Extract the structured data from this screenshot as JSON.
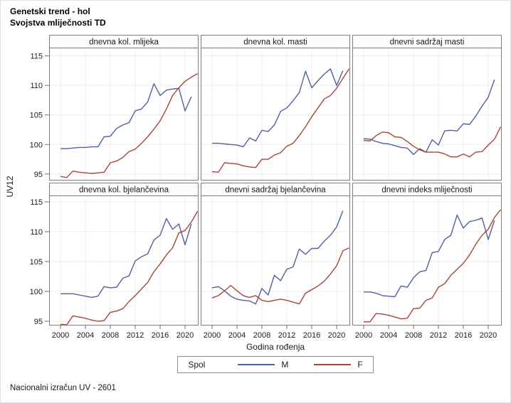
{
  "title_line1": "Genetski trend - hol",
  "title_line2": "Svojstva mliječnosti TD",
  "y_axis_label": "UV12",
  "x_axis_label": "Godina rođenja",
  "footnote": "Nacionalni izračun UV - 2601",
  "legend": {
    "title": "Spol",
    "items": [
      {
        "label": "M",
        "color": "#50619E"
      },
      {
        "label": "F",
        "color": "#A8463A"
      }
    ]
  },
  "chart_data": {
    "type": "line",
    "grid": true,
    "x_ticks": [
      2000,
      2004,
      2008,
      2012,
      2016,
      2020
    ],
    "y_ticks": [
      95,
      100,
      105,
      110,
      115
    ],
    "x_range": [
      1998.2,
      2022.2
    ],
    "y_range": [
      93.9,
      116.4
    ],
    "legend_position": "bottom",
    "panels": [
      {
        "title": "dnevna kol. mlijeka",
        "M": {
          "start_year": 2000,
          "values": [
            99.3,
            99.3,
            99.4,
            99.5,
            99.5,
            99.6,
            99.6,
            101.3,
            101.4,
            102.7,
            103.3,
            103.7,
            105.7,
            106.0,
            107.2,
            110.3,
            108.3,
            109.2,
            109.4,
            109.5,
            105.7,
            108.1
          ]
        },
        "F": {
          "start_year": 2000,
          "values": [
            94.6,
            94.4,
            95.5,
            95.3,
            95.2,
            95.1,
            95.2,
            95.3,
            96.9,
            97.2,
            97.8,
            98.8,
            99.2,
            100.2,
            101.3,
            102.6,
            104.0,
            106.0,
            108.3,
            109.6,
            110.7,
            111.4,
            112.0
          ]
        }
      },
      {
        "title": "dnevna kol. masti",
        "M": {
          "start_year": 2000,
          "values": [
            100.2,
            100.2,
            100.1,
            100.0,
            99.9,
            99.6,
            101.1,
            100.6,
            102.4,
            102.2,
            103.3,
            105.6,
            106.2,
            107.4,
            108.8,
            112.4,
            109.6,
            110.8,
            111.9,
            112.8,
            110.0,
            112.5
          ]
        },
        "F": {
          "start_year": 2000,
          "values": [
            95.4,
            95.3,
            96.9,
            96.8,
            96.7,
            96.4,
            96.2,
            96.1,
            97.5,
            97.5,
            98.2,
            98.6,
            99.7,
            100.2,
            101.5,
            103.0,
            104.7,
            106.2,
            107.7,
            108.3,
            109.5,
            111.2,
            112.8
          ]
        }
      },
      {
        "title": "dnevni sadržaj masti",
        "M": {
          "start_year": 2000,
          "values": [
            101.0,
            100.9,
            100.5,
            100.2,
            100.1,
            99.8,
            99.5,
            99.4,
            98.3,
            99.3,
            98.7,
            100.8,
            99.9,
            102.3,
            102.4,
            102.3,
            103.5,
            103.4,
            104.8,
            106.5,
            108.0,
            111.0
          ]
        },
        "F": {
          "start_year": 2000,
          "values": [
            100.7,
            100.6,
            101.5,
            102.1,
            102.0,
            101.3,
            101.2,
            100.5,
            99.7,
            99.1,
            98.7,
            98.7,
            98.7,
            98.4,
            97.9,
            97.9,
            98.4,
            97.9,
            98.7,
            98.8,
            99.9,
            100.9,
            103.0
          ]
        }
      },
      {
        "title": "dnevna kol. bjelančevina",
        "M": {
          "start_year": 2000,
          "values": [
            99.6,
            99.6,
            99.6,
            99.4,
            99.2,
            99.0,
            99.2,
            100.8,
            100.6,
            100.7,
            102.2,
            102.6,
            105.1,
            105.8,
            106.3,
            108.6,
            109.4,
            112.2,
            110.4,
            111.3,
            107.8,
            111.3
          ]
        },
        "F": {
          "start_year": 2000,
          "values": [
            94.5,
            94.4,
            95.9,
            95.7,
            95.5,
            95.2,
            95.0,
            95.1,
            96.5,
            96.7,
            97.1,
            98.3,
            99.3,
            100.4,
            101.5,
            103.3,
            104.6,
            106.1,
            107.3,
            109.8,
            110.2,
            111.6,
            113.4
          ]
        }
      },
      {
        "title": "dnevni sadržaj bjelančevina",
        "M": {
          "start_year": 2000,
          "values": [
            100.6,
            100.8,
            100.1,
            99.2,
            98.7,
            98.5,
            98.4,
            97.9,
            100.5,
            99.4,
            102.7,
            101.8,
            103.7,
            104.1,
            107.1,
            106.2,
            107.2,
            107.2,
            108.4,
            109.4,
            110.8,
            113.5
          ]
        },
        "F": {
          "start_year": 2000,
          "values": [
            98.9,
            99.3,
            100.1,
            101.0,
            100.1,
            99.3,
            99.0,
            99.3,
            98.5,
            98.3,
            98.5,
            98.7,
            98.5,
            98.2,
            97.9,
            99.7,
            100.3,
            100.9,
            101.7,
            102.9,
            104.3,
            106.8,
            107.3
          ]
        }
      },
      {
        "title": "dnevni indeks mliječnosti",
        "M": {
          "start_year": 2000,
          "values": [
            99.9,
            99.9,
            99.7,
            99.3,
            99.2,
            99.1,
            100.9,
            100.7,
            102.3,
            103.3,
            103.5,
            106.5,
            106.7,
            108.7,
            109.4,
            112.8,
            110.6,
            111.7,
            111.9,
            112.3,
            108.7,
            111.9
          ]
        },
        "F": {
          "start_year": 2000,
          "values": [
            94.9,
            94.9,
            96.3,
            96.2,
            96.0,
            95.7,
            95.4,
            95.5,
            97.1,
            97.2,
            98.5,
            98.9,
            100.7,
            101.3,
            102.7,
            103.7,
            104.7,
            106.1,
            107.9,
            109.4,
            110.4,
            112.4,
            113.7
          ]
        }
      }
    ]
  }
}
